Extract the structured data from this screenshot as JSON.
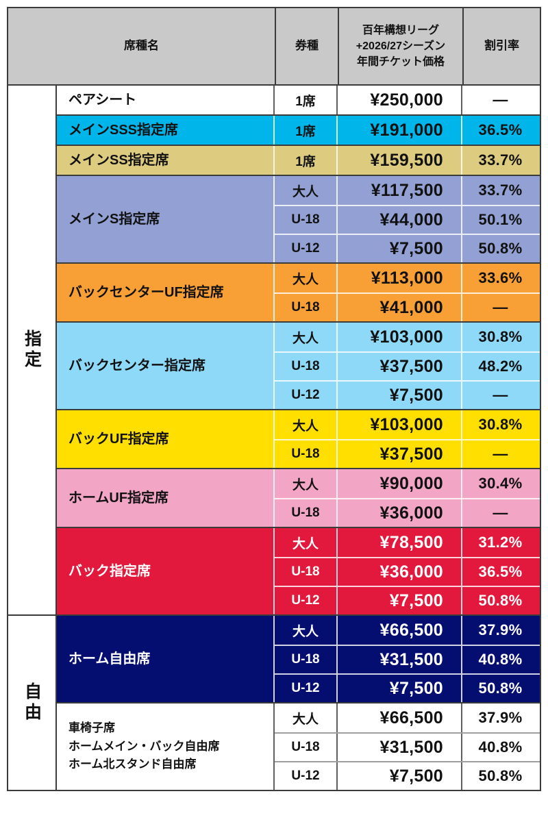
{
  "table": {
    "header": {
      "bg": "#c9c9c9",
      "seat_name": "席種名",
      "ticket_type": "券種",
      "price_lines": "百年構想リーグ\n+2026/27シーズン\n年間チケット価格",
      "discount": "割引率"
    },
    "sections": [
      {
        "label": "指定",
        "groups": [
          {
            "name": "ペアシート",
            "plain": true,
            "bg": "#ffffff",
            "fg": "#111111",
            "rows": [
              {
                "type": "1席",
                "price": "¥250,000",
                "discount": "—"
              }
            ]
          },
          {
            "name": "メインSSS指定席",
            "bg": "#00b5e9",
            "fg": "#111111",
            "rows": [
              {
                "type": "1席",
                "price": "¥191,000",
                "discount": "36.5%"
              }
            ]
          },
          {
            "name": "メインSS指定席",
            "bg": "#ddcc80",
            "fg": "#111111",
            "rows": [
              {
                "type": "1席",
                "price": "¥159,500",
                "discount": "33.7%"
              }
            ]
          },
          {
            "name": "メインS指定席",
            "bg": "#92a0d3",
            "fg": "#111111",
            "rows": [
              {
                "type": "大人",
                "price": "¥117,500",
                "discount": "33.7%"
              },
              {
                "type": "U-18",
                "price": "¥44,000",
                "discount": "50.1%"
              },
              {
                "type": "U-12",
                "price": "¥7,500",
                "discount": "50.8%"
              }
            ]
          },
          {
            "name": "バックセンターUF指定席",
            "bg": "#f89f36",
            "fg": "#111111",
            "rows": [
              {
                "type": "大人",
                "price": "¥113,000",
                "discount": "33.6%"
              },
              {
                "type": "U-18",
                "price": "¥41,000",
                "discount": "—"
              }
            ]
          },
          {
            "name": "バックセンター指定席",
            "bg": "#8ed9f8",
            "fg": "#111111",
            "rows": [
              {
                "type": "大人",
                "price": "¥103,000",
                "discount": "30.8%"
              },
              {
                "type": "U-18",
                "price": "¥37,500",
                "discount": "48.2%"
              },
              {
                "type": "U-12",
                "price": "¥7,500",
                "discount": "—"
              }
            ]
          },
          {
            "name": "バックUF指定席",
            "bg": "#ffdf00",
            "fg": "#111111",
            "rows": [
              {
                "type": "大人",
                "price": "¥103,000",
                "discount": "30.8%"
              },
              {
                "type": "U-18",
                "price": "¥37,500",
                "discount": "—"
              }
            ]
          },
          {
            "name": "ホームUF指定席",
            "bg": "#f2a5c4",
            "fg": "#111111",
            "rows": [
              {
                "type": "大人",
                "price": "¥90,000",
                "discount": "30.4%"
              },
              {
                "type": "U-18",
                "price": "¥36,000",
                "discount": "—"
              }
            ]
          },
          {
            "name": "バック指定席",
            "bg": "#e2193d",
            "fg": "#ffffff",
            "rows": [
              {
                "type": "大人",
                "price": "¥78,500",
                "discount": "31.2%"
              },
              {
                "type": "U-18",
                "price": "¥36,000",
                "discount": "36.5%"
              },
              {
                "type": "U-12",
                "price": "¥7,500",
                "discount": "50.8%"
              }
            ]
          }
        ]
      },
      {
        "label": "自由",
        "groups": [
          {
            "name": "ホーム自由席",
            "bg": "#040e70",
            "fg": "#ffffff",
            "rows": [
              {
                "type": "大人",
                "price": "¥66,500",
                "discount": "37.9%"
              },
              {
                "type": "U-18",
                "price": "¥31,500",
                "discount": "40.8%"
              },
              {
                "type": "U-12",
                "price": "¥7,500",
                "discount": "50.8%"
              }
            ]
          },
          {
            "name": "車椅子席\nホームメイン・バック自由席\nホーム北スタンド自由席",
            "plain": true,
            "small_name": true,
            "bg": "#ffffff",
            "fg": "#111111",
            "rows": [
              {
                "type": "大人",
                "price": "¥66,500",
                "discount": "37.9%"
              },
              {
                "type": "U-18",
                "price": "¥31,500",
                "discount": "40.8%"
              },
              {
                "type": "U-12",
                "price": "¥7,500",
                "discount": "50.8%"
              }
            ]
          }
        ]
      }
    ]
  }
}
